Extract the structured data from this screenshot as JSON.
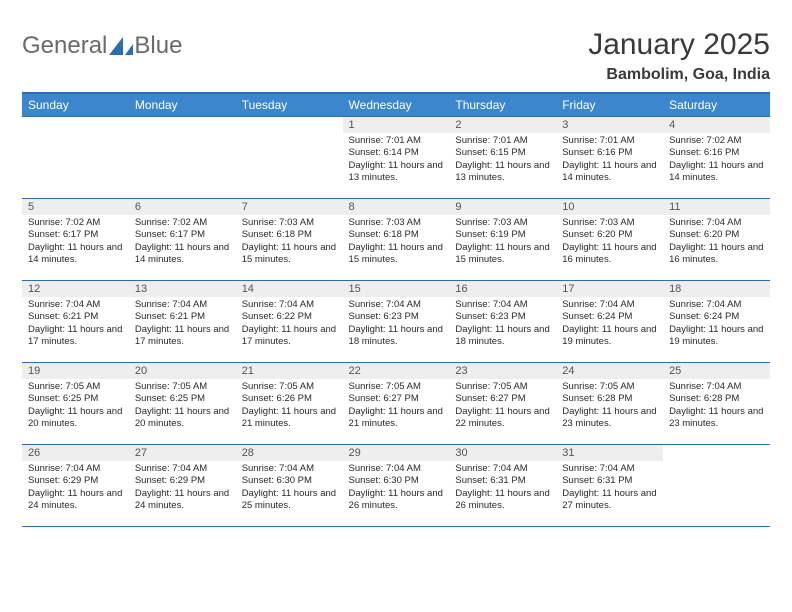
{
  "logo": {
    "text1": "General",
    "text2": "Blue",
    "color_text": "#6a6a6a",
    "color_shape": "#2a6db5"
  },
  "title": "January 2025",
  "location": "Bambolim, Goa, India",
  "header_bg": "#3b86cc",
  "border_color": "#2a6db5",
  "daynum_bg": "#eeeeee",
  "weekdays": [
    "Sunday",
    "Monday",
    "Tuesday",
    "Wednesday",
    "Thursday",
    "Friday",
    "Saturday"
  ],
  "days": [
    null,
    null,
    null,
    {
      "n": "1",
      "sunrise": "7:01 AM",
      "sunset": "6:14 PM",
      "daylight": "11 hours and 13 minutes."
    },
    {
      "n": "2",
      "sunrise": "7:01 AM",
      "sunset": "6:15 PM",
      "daylight": "11 hours and 13 minutes."
    },
    {
      "n": "3",
      "sunrise": "7:01 AM",
      "sunset": "6:16 PM",
      "daylight": "11 hours and 14 minutes."
    },
    {
      "n": "4",
      "sunrise": "7:02 AM",
      "sunset": "6:16 PM",
      "daylight": "11 hours and 14 minutes."
    },
    {
      "n": "5",
      "sunrise": "7:02 AM",
      "sunset": "6:17 PM",
      "daylight": "11 hours and 14 minutes."
    },
    {
      "n": "6",
      "sunrise": "7:02 AM",
      "sunset": "6:17 PM",
      "daylight": "11 hours and 14 minutes."
    },
    {
      "n": "7",
      "sunrise": "7:03 AM",
      "sunset": "6:18 PM",
      "daylight": "11 hours and 15 minutes."
    },
    {
      "n": "8",
      "sunrise": "7:03 AM",
      "sunset": "6:18 PM",
      "daylight": "11 hours and 15 minutes."
    },
    {
      "n": "9",
      "sunrise": "7:03 AM",
      "sunset": "6:19 PM",
      "daylight": "11 hours and 15 minutes."
    },
    {
      "n": "10",
      "sunrise": "7:03 AM",
      "sunset": "6:20 PM",
      "daylight": "11 hours and 16 minutes."
    },
    {
      "n": "11",
      "sunrise": "7:04 AM",
      "sunset": "6:20 PM",
      "daylight": "11 hours and 16 minutes."
    },
    {
      "n": "12",
      "sunrise": "7:04 AM",
      "sunset": "6:21 PM",
      "daylight": "11 hours and 17 minutes."
    },
    {
      "n": "13",
      "sunrise": "7:04 AM",
      "sunset": "6:21 PM",
      "daylight": "11 hours and 17 minutes."
    },
    {
      "n": "14",
      "sunrise": "7:04 AM",
      "sunset": "6:22 PM",
      "daylight": "11 hours and 17 minutes."
    },
    {
      "n": "15",
      "sunrise": "7:04 AM",
      "sunset": "6:23 PM",
      "daylight": "11 hours and 18 minutes."
    },
    {
      "n": "16",
      "sunrise": "7:04 AM",
      "sunset": "6:23 PM",
      "daylight": "11 hours and 18 minutes."
    },
    {
      "n": "17",
      "sunrise": "7:04 AM",
      "sunset": "6:24 PM",
      "daylight": "11 hours and 19 minutes."
    },
    {
      "n": "18",
      "sunrise": "7:04 AM",
      "sunset": "6:24 PM",
      "daylight": "11 hours and 19 minutes."
    },
    {
      "n": "19",
      "sunrise": "7:05 AM",
      "sunset": "6:25 PM",
      "daylight": "11 hours and 20 minutes."
    },
    {
      "n": "20",
      "sunrise": "7:05 AM",
      "sunset": "6:25 PM",
      "daylight": "11 hours and 20 minutes."
    },
    {
      "n": "21",
      "sunrise": "7:05 AM",
      "sunset": "6:26 PM",
      "daylight": "11 hours and 21 minutes."
    },
    {
      "n": "22",
      "sunrise": "7:05 AM",
      "sunset": "6:27 PM",
      "daylight": "11 hours and 21 minutes."
    },
    {
      "n": "23",
      "sunrise": "7:05 AM",
      "sunset": "6:27 PM",
      "daylight": "11 hours and 22 minutes."
    },
    {
      "n": "24",
      "sunrise": "7:05 AM",
      "sunset": "6:28 PM",
      "daylight": "11 hours and 23 minutes."
    },
    {
      "n": "25",
      "sunrise": "7:04 AM",
      "sunset": "6:28 PM",
      "daylight": "11 hours and 23 minutes."
    },
    {
      "n": "26",
      "sunrise": "7:04 AM",
      "sunset": "6:29 PM",
      "daylight": "11 hours and 24 minutes."
    },
    {
      "n": "27",
      "sunrise": "7:04 AM",
      "sunset": "6:29 PM",
      "daylight": "11 hours and 24 minutes."
    },
    {
      "n": "28",
      "sunrise": "7:04 AM",
      "sunset": "6:30 PM",
      "daylight": "11 hours and 25 minutes."
    },
    {
      "n": "29",
      "sunrise": "7:04 AM",
      "sunset": "6:30 PM",
      "daylight": "11 hours and 26 minutes."
    },
    {
      "n": "30",
      "sunrise": "7:04 AM",
      "sunset": "6:31 PM",
      "daylight": "11 hours and 26 minutes."
    },
    {
      "n": "31",
      "sunrise": "7:04 AM",
      "sunset": "6:31 PM",
      "daylight": "11 hours and 27 minutes."
    },
    null
  ],
  "labels": {
    "sunrise": "Sunrise:",
    "sunset": "Sunset:",
    "daylight": "Daylight:"
  }
}
